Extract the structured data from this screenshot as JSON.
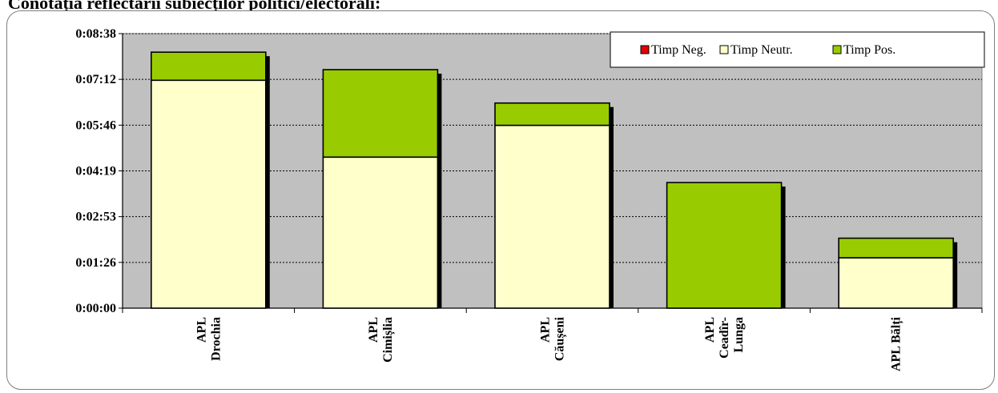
{
  "chart_data": {
    "type": "bar",
    "stacked": true,
    "title": "Conotația reflectării subiecților politici/electorali:",
    "categories": [
      [
        "APL",
        "Drochia"
      ],
      [
        "APL",
        "Cimișlia"
      ],
      [
        "APL",
        "Căușeni"
      ],
      [
        "APL",
        "Ceadîr-",
        "Lunga"
      ],
      [
        "APL Bălți"
      ]
    ],
    "series": [
      {
        "name": "Timp Neg.",
        "color": "#e00000",
        "values": [
          0,
          0,
          0,
          0,
          0
        ]
      },
      {
        "name": "Timp Neutr.",
        "color": "#ffffcc",
        "values": [
          430,
          285,
          345,
          0,
          95
        ]
      },
      {
        "name": "Timp Pos.",
        "color": "#99cc00",
        "values": [
          53,
          165,
          42,
          237,
          37
        ]
      }
    ],
    "y_ticks": [
      "0:00:00",
      "0:01:26",
      "0:02:53",
      "0:04:19",
      "0:05:46",
      "0:07:12",
      "0:08:38"
    ],
    "ylim_seconds": [
      0,
      518
    ],
    "grid": true,
    "legend_position": "top-right",
    "plot_background": "#c0c0c0"
  }
}
